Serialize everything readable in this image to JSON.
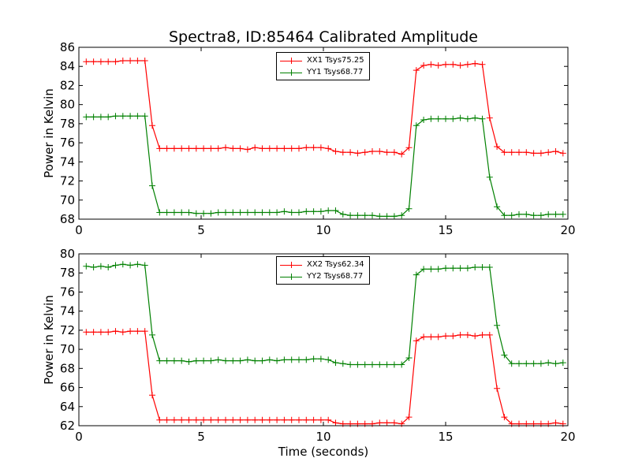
{
  "title": "Spectra8, ID:85464 Calibrated Amplitude",
  "colors": {
    "xx": "#ff0000",
    "yy": "#008000",
    "axis": "#000000",
    "background": "#ffffff"
  },
  "chart_data": [
    {
      "type": "line",
      "title": "Spectra8, ID:85464 Calibrated Amplitude",
      "xlabel": "",
      "ylabel": "Power in Kelvin",
      "xlim": [
        0,
        20
      ],
      "ylim": [
        68,
        86
      ],
      "xticks": [
        0,
        5,
        10,
        15,
        20
      ],
      "yticks": [
        68,
        70,
        72,
        74,
        76,
        78,
        80,
        82,
        84,
        86
      ],
      "grid": false,
      "legend_position": "top-center",
      "x": [
        0.3,
        0.6,
        0.9,
        1.2,
        1.5,
        1.8,
        2.1,
        2.4,
        2.7,
        3.0,
        3.3,
        3.6,
        3.9,
        4.2,
        4.5,
        4.8,
        5.1,
        5.4,
        5.7,
        6.0,
        6.3,
        6.6,
        6.9,
        7.2,
        7.5,
        7.8,
        8.1,
        8.4,
        8.7,
        9.0,
        9.3,
        9.6,
        9.9,
        10.2,
        10.5,
        10.8,
        11.1,
        11.4,
        11.7,
        12.0,
        12.3,
        12.6,
        12.9,
        13.2,
        13.5,
        13.8,
        14.1,
        14.4,
        14.7,
        15.0,
        15.3,
        15.6,
        15.9,
        16.2,
        16.5,
        16.8,
        17.1,
        17.4,
        17.7,
        18.0,
        18.3,
        18.6,
        18.9,
        19.2,
        19.5,
        19.8
      ],
      "series": [
        {
          "name": "XX1 Tsys75.25",
          "color": "#ff0000",
          "values": [
            84.5,
            84.5,
            84.5,
            84.5,
            84.5,
            84.6,
            84.6,
            84.6,
            84.6,
            77.8,
            75.4,
            75.4,
            75.4,
            75.4,
            75.4,
            75.4,
            75.4,
            75.4,
            75.4,
            75.5,
            75.4,
            75.4,
            75.3,
            75.5,
            75.4,
            75.4,
            75.4,
            75.4,
            75.4,
            75.4,
            75.5,
            75.5,
            75.5,
            75.4,
            75.1,
            75.0,
            75.0,
            74.9,
            75.0,
            75.1,
            75.1,
            75.0,
            75.0,
            74.8,
            75.5,
            83.6,
            84.1,
            84.2,
            84.1,
            84.2,
            84.2,
            84.1,
            84.2,
            84.3,
            84.2,
            78.6,
            75.6,
            75.0,
            75.0,
            75.0,
            75.0,
            74.9,
            74.9,
            75.0,
            75.1,
            74.9
          ]
        },
        {
          "name": "YY1 Tsys68.77",
          "color": "#008000",
          "values": [
            78.7,
            78.7,
            78.7,
            78.7,
            78.8,
            78.8,
            78.8,
            78.8,
            78.8,
            71.5,
            68.7,
            68.7,
            68.7,
            68.7,
            68.7,
            68.6,
            68.6,
            68.6,
            68.7,
            68.7,
            68.7,
            68.7,
            68.7,
            68.7,
            68.7,
            68.7,
            68.7,
            68.8,
            68.7,
            68.7,
            68.8,
            68.8,
            68.8,
            68.9,
            68.9,
            68.5,
            68.4,
            68.4,
            68.4,
            68.4,
            68.3,
            68.3,
            68.3,
            68.4,
            69.1,
            77.8,
            78.4,
            78.5,
            78.5,
            78.5,
            78.5,
            78.6,
            78.5,
            78.6,
            78.5,
            72.4,
            69.3,
            68.4,
            68.4,
            68.5,
            68.5,
            68.4,
            68.4,
            68.5,
            68.5,
            68.5
          ]
        }
      ]
    },
    {
      "type": "line",
      "title": "",
      "xlabel": "Time (seconds)",
      "ylabel": "Power in Kelvin",
      "xlim": [
        0,
        20
      ],
      "ylim": [
        62,
        80
      ],
      "xticks": [
        0,
        5,
        10,
        15,
        20
      ],
      "yticks": [
        62,
        64,
        66,
        68,
        70,
        72,
        74,
        76,
        78,
        80
      ],
      "grid": false,
      "legend_position": "top-center",
      "x": [
        0.3,
        0.6,
        0.9,
        1.2,
        1.5,
        1.8,
        2.1,
        2.4,
        2.7,
        3.0,
        3.3,
        3.6,
        3.9,
        4.2,
        4.5,
        4.8,
        5.1,
        5.4,
        5.7,
        6.0,
        6.3,
        6.6,
        6.9,
        7.2,
        7.5,
        7.8,
        8.1,
        8.4,
        8.7,
        9.0,
        9.3,
        9.6,
        9.9,
        10.2,
        10.5,
        10.8,
        11.1,
        11.4,
        11.7,
        12.0,
        12.3,
        12.6,
        12.9,
        13.2,
        13.5,
        13.8,
        14.1,
        14.4,
        14.7,
        15.0,
        15.3,
        15.6,
        15.9,
        16.2,
        16.5,
        16.8,
        17.1,
        17.4,
        17.7,
        18.0,
        18.3,
        18.6,
        18.9,
        19.2,
        19.5,
        19.8
      ],
      "series": [
        {
          "name": "XX2 Tsys62.34",
          "color": "#ff0000",
          "values": [
            71.8,
            71.8,
            71.8,
            71.8,
            71.9,
            71.8,
            71.9,
            71.9,
            71.9,
            65.2,
            62.6,
            62.6,
            62.6,
            62.6,
            62.6,
            62.6,
            62.6,
            62.6,
            62.6,
            62.6,
            62.6,
            62.6,
            62.6,
            62.6,
            62.6,
            62.6,
            62.6,
            62.6,
            62.6,
            62.6,
            62.6,
            62.6,
            62.6,
            62.6,
            62.3,
            62.2,
            62.2,
            62.2,
            62.2,
            62.2,
            62.3,
            62.3,
            62.3,
            62.2,
            62.9,
            70.9,
            71.3,
            71.3,
            71.3,
            71.4,
            71.4,
            71.5,
            71.5,
            71.4,
            71.5,
            71.5,
            65.9,
            62.9,
            62.2,
            62.2,
            62.2,
            62.2,
            62.2,
            62.2,
            62.3,
            62.2
          ]
        },
        {
          "name": "YY2 Tsys68.77",
          "color": "#008000",
          "values": [
            78.7,
            78.6,
            78.7,
            78.6,
            78.8,
            78.9,
            78.8,
            78.9,
            78.8,
            71.5,
            68.8,
            68.8,
            68.8,
            68.8,
            68.7,
            68.8,
            68.8,
            68.8,
            68.9,
            68.8,
            68.8,
            68.8,
            68.9,
            68.8,
            68.8,
            68.9,
            68.8,
            68.9,
            68.9,
            68.9,
            68.9,
            69.0,
            69.0,
            68.9,
            68.6,
            68.5,
            68.4,
            68.4,
            68.4,
            68.4,
            68.4,
            68.4,
            68.4,
            68.4,
            69.1,
            77.8,
            78.4,
            78.4,
            78.4,
            78.5,
            78.5,
            78.5,
            78.5,
            78.6,
            78.6,
            78.6,
            72.5,
            69.4,
            68.5,
            68.5,
            68.5,
            68.5,
            68.5,
            68.6,
            68.5,
            68.6
          ]
        }
      ]
    }
  ]
}
